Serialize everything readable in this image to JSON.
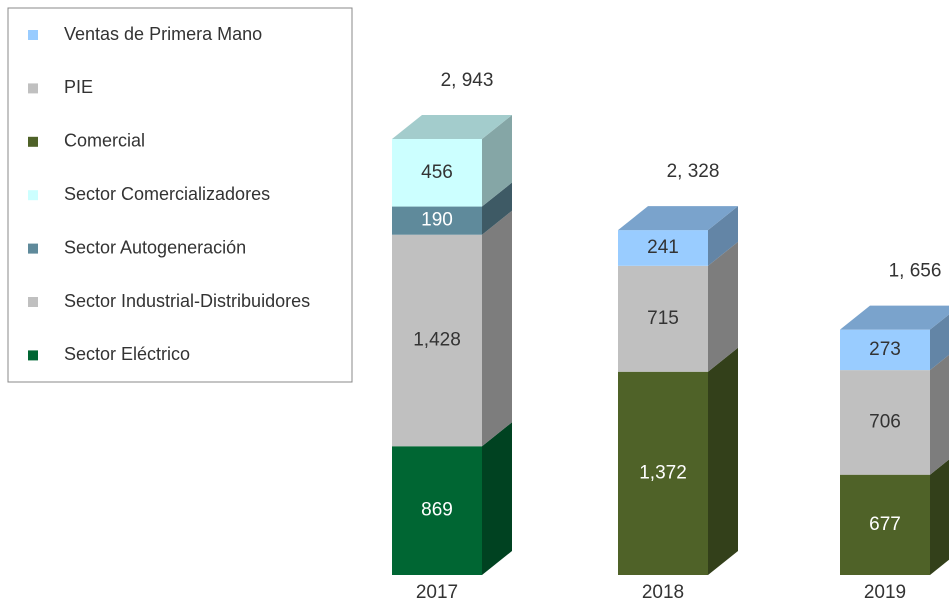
{
  "chart_data": {
    "type": "bar3d_stacked",
    "categories": [
      "2017",
      "2018",
      "2019"
    ],
    "series": [
      {
        "name": "Ventas de Primera Mano",
        "color": "#99ccff",
        "values": [
          null,
          241,
          273
        ],
        "value_labels": [
          null,
          "241",
          "273"
        ]
      },
      {
        "name": "PIE",
        "color": "#c0c0c0",
        "values": [
          null,
          715,
          706
        ],
        "value_labels": [
          null,
          "715",
          "706"
        ]
      },
      {
        "name": "Comercial",
        "color": "#4f6228",
        "values": [
          null,
          1372,
          677
        ],
        "value_labels": [
          null,
          "1,372",
          "677"
        ]
      },
      {
        "name": "Sector Comercializadores",
        "color": "#ccffff",
        "values": [
          456,
          null,
          null
        ],
        "value_labels": [
          "456",
          null,
          null
        ]
      },
      {
        "name": "Sector Autogeneración",
        "color": "#5f8a9b",
        "values": [
          190,
          null,
          null
        ],
        "value_labels": [
          "190",
          null,
          null
        ]
      },
      {
        "name": "Sector Industrial-Distribuidores",
        "color": "#c0c0c0",
        "values": [
          1428,
          null,
          null
        ],
        "value_labels": [
          "1,428",
          null,
          null
        ]
      },
      {
        "name": "Sector Eléctrico",
        "color": "#006633",
        "values": [
          869,
          null,
          null
        ],
        "value_labels": [
          "869",
          null,
          null
        ]
      }
    ],
    "totals": [
      2943,
      2328,
      1656
    ],
    "total_labels": [
      "2, 943",
      "2, 328",
      "1, 656"
    ],
    "legend": "top-left"
  }
}
